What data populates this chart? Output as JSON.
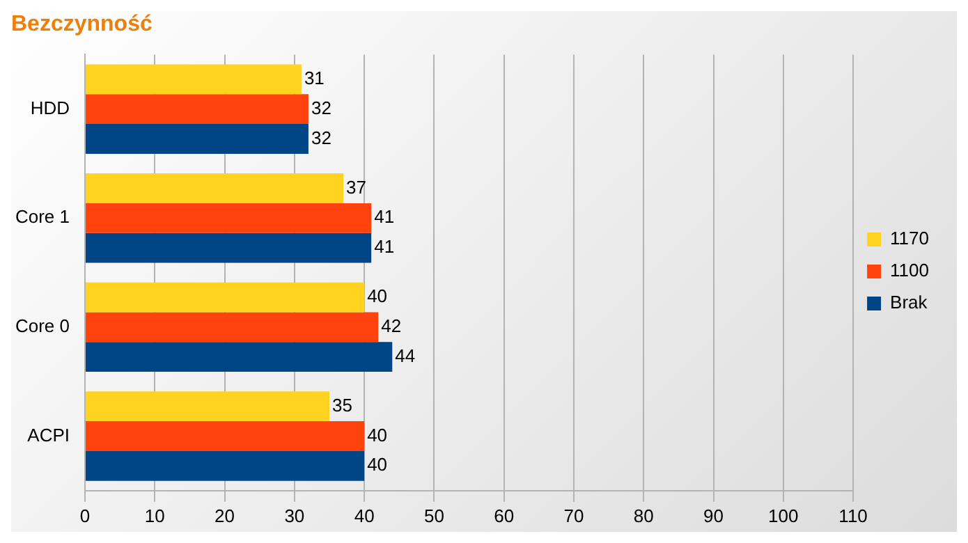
{
  "chart_data": {
    "type": "bar",
    "orientation": "horizontal",
    "title": "Bezczynność",
    "categories": [
      "HDD",
      "Core 1",
      "Core 0",
      "ACPI"
    ],
    "series": [
      {
        "name": "1170",
        "color": "#ffd320",
        "values": [
          31,
          37,
          40,
          35
        ]
      },
      {
        "name": "1100",
        "color": "#ff420e",
        "values": [
          32,
          41,
          42,
          40
        ]
      },
      {
        "name": "Brak",
        "color": "#004586",
        "values": [
          32,
          41,
          44,
          40
        ]
      }
    ],
    "xlim": [
      0,
      110
    ],
    "xticks": [
      0,
      10,
      20,
      30,
      40,
      50,
      60,
      70,
      80,
      90,
      100,
      110
    ],
    "grid": "x",
    "legend": "right",
    "data_labels": true
  }
}
